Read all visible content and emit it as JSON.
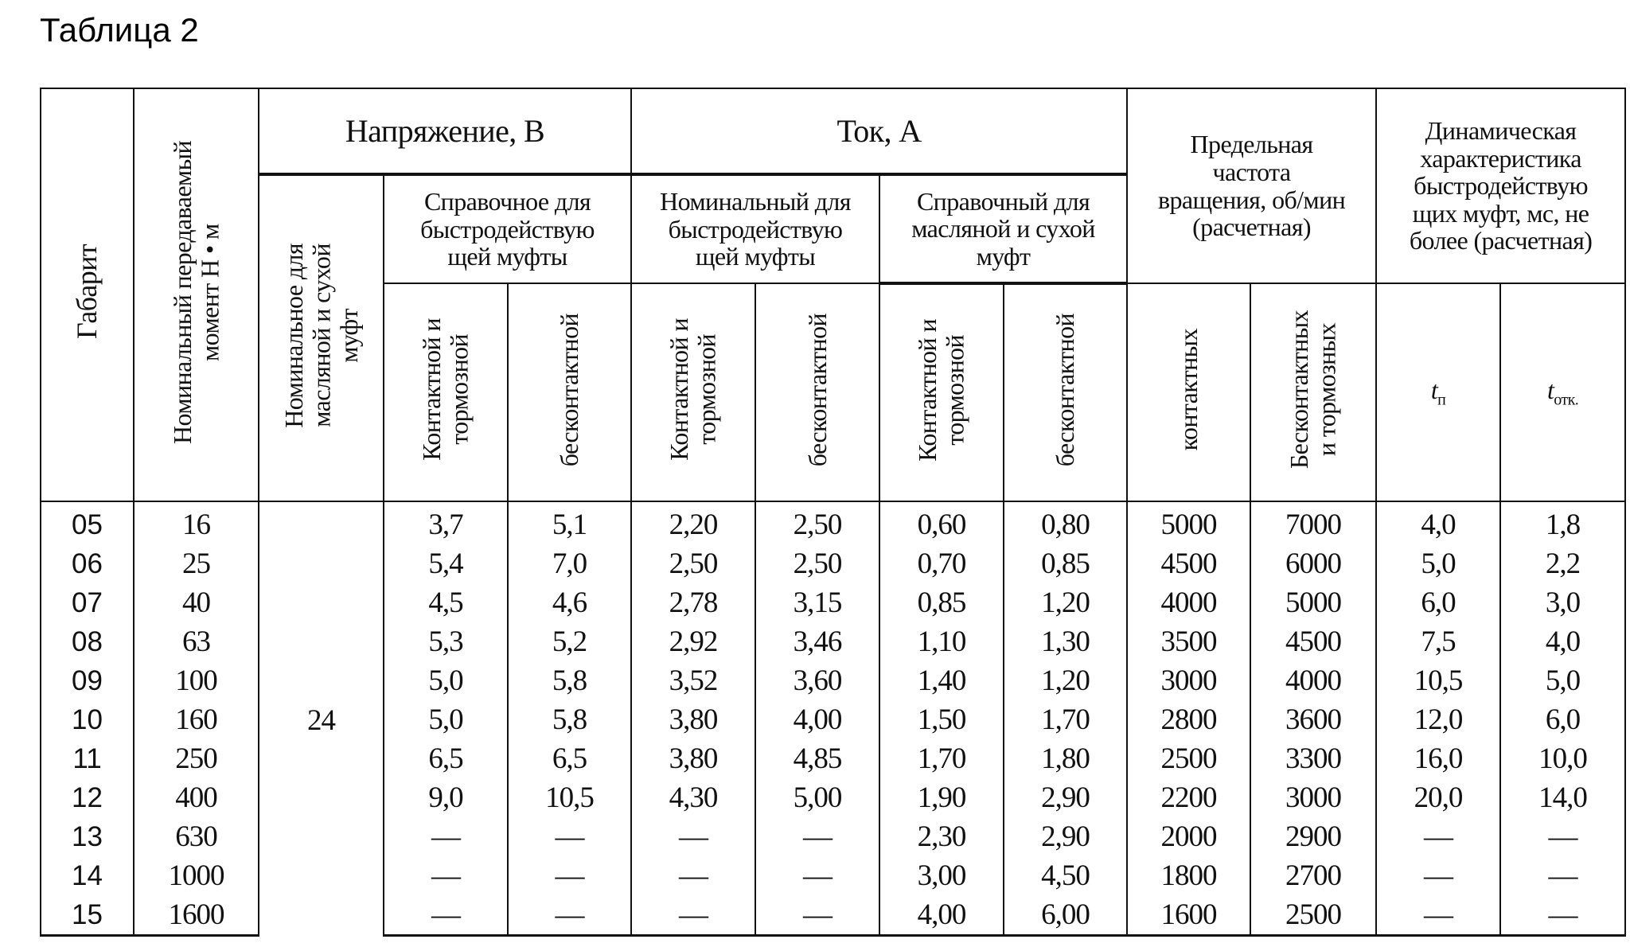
{
  "title": "Таблица 2",
  "headers": {
    "gabarit": "Габарит",
    "moment": "Номинальный передаваемый\nмомент Н • м",
    "voltage": "Напряжение, В",
    "current": "Ток, А",
    "freq": "Предельная\nчастота\nвращения, об/мин\n(расчетная)",
    "dynamic": "Динамическая\nхарактеристика\nбыстродействую\nщих муфт, мс, не\nболее (расчетная)",
    "v_nominal": "Номинальное для\nмасляной и сухой\nмуфт",
    "v_ref_fast": "Справочное для\nбыстродействую\nщей муфты",
    "i_nom_fast": "Номинальный для\nбыстродействую\nщей муфты",
    "i_ref_oil": "Справочный для\nмасляной и сухой\nмуфт",
    "contact_brake": "Контактной и\nтормозной",
    "contactless": "бесконтактной",
    "contact_brake_2": "Контактной и\nтормозной",
    "contactless_2": "бесконтактной",
    "contact_brake_3": "Контактной и\nтормозной",
    "contactless_3": "бесконтактной",
    "contact_pl": "контактных",
    "contactless_brake_pl": "Бесконтактных\nи тормозных",
    "t_on": "t",
    "t_on_sub": "п",
    "t_off": "t",
    "t_off_sub": "отк."
  },
  "voltage_nominal_value": "24",
  "rows": [
    [
      "05",
      "16",
      "3,7",
      "5,1",
      "2,20",
      "2,50",
      "0,60",
      "0,80",
      "5000",
      "7000",
      "4,0",
      "1,8"
    ],
    [
      "06",
      "25",
      "5,4",
      "7,0",
      "2,50",
      "2,50",
      "0,70",
      "0,85",
      "4500",
      "6000",
      "5,0",
      "2,2"
    ],
    [
      "07",
      "40",
      "4,5",
      "4,6",
      "2,78",
      "3,15",
      "0,85",
      "1,20",
      "4000",
      "5000",
      "6,0",
      "3,0"
    ],
    [
      "08",
      "63",
      "5,3",
      "5,2",
      "2,92",
      "3,46",
      "1,10",
      "1,30",
      "3500",
      "4500",
      "7,5",
      "4,0"
    ],
    [
      "09",
      "100",
      "5,0",
      "5,8",
      "3,52",
      "3,60",
      "1,40",
      "1,20",
      "3000",
      "4000",
      "10,5",
      "5,0"
    ],
    [
      "10",
      "160",
      "5,0",
      "5,8",
      "3,80",
      "4,00",
      "1,50",
      "1,70",
      "2800",
      "3600",
      "12,0",
      "6,0"
    ],
    [
      "11",
      "250",
      "6,5",
      "6,5",
      "3,80",
      "4,85",
      "1,70",
      "1,80",
      "2500",
      "3300",
      "16,0",
      "10,0"
    ],
    [
      "12",
      "400",
      "9,0",
      "10,5",
      "4,30",
      "5,00",
      "1,90",
      "2,90",
      "2200",
      "3000",
      "20,0",
      "14,0"
    ],
    [
      "13",
      "630",
      "—",
      "—",
      "—",
      "—",
      "2,30",
      "2,90",
      "2000",
      "2900",
      "—",
      "—"
    ],
    [
      "14",
      "1000",
      "—",
      "—",
      "—",
      "—",
      "3,00",
      "4,50",
      "1800",
      "2700",
      "—",
      "—"
    ],
    [
      "15",
      "1600",
      "—",
      "—",
      "—",
      "—",
      "4,00",
      "6,00",
      "1600",
      "2500",
      "—",
      "—"
    ]
  ]
}
